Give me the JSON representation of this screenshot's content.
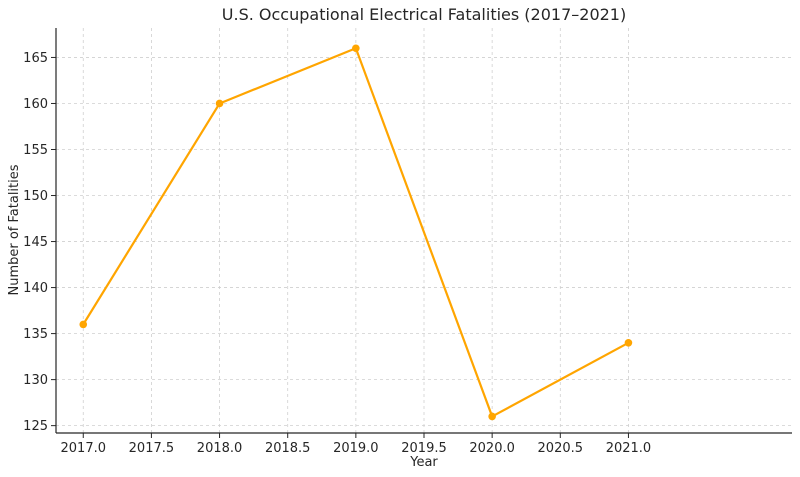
{
  "chart_data": {
    "type": "line",
    "title": "U.S. Occupational Electrical Fatalities (2017–2021)",
    "xlabel": "Year",
    "ylabel": "Number of Fatalities",
    "xlim": [
      2016.8,
      2022.2
    ],
    "ylim": [
      124.2,
      168.2
    ],
    "x_ticks": [
      2017.0,
      2017.5,
      2018.0,
      2018.5,
      2019.0,
      2019.5,
      2020.0,
      2020.5,
      2021.0
    ],
    "x_tick_labels": [
      "2017.0",
      "2017.5",
      "2018.0",
      "2018.5",
      "2019.0",
      "2019.5",
      "2020.0",
      "2020.5",
      "2021.0"
    ],
    "y_ticks": [
      125,
      130,
      135,
      140,
      145,
      150,
      155,
      160,
      165
    ],
    "y_tick_labels": [
      "125",
      "130",
      "135",
      "140",
      "145",
      "150",
      "155",
      "160",
      "165"
    ],
    "grid": true,
    "series": [
      {
        "color": "#FFA500",
        "x": [
          2017,
          2018,
          2019,
          2020,
          2021
        ],
        "y": [
          136,
          160,
          166,
          126,
          134
        ]
      }
    ]
  }
}
